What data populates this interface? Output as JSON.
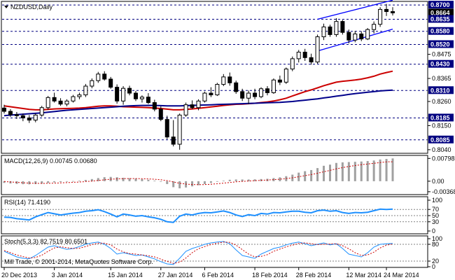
{
  "chart_data": {
    "type": "candlestick",
    "symbol_title": "NZDUSD,Daily",
    "symbol_menu_icon": "triangle-down-icon",
    "copyright": "Mill Trade, © 2001-2014, MetaQuotes Software Corp.",
    "dates": [
      "20 Dec 2013",
      "3 Jan 2014",
      "15 Jan 2014",
      "27 Jan 2014",
      "6 Feb 2014",
      "18 Feb 2014",
      "28 Feb 2014",
      "12 Mar 2014",
      "24 Mar 2014"
    ],
    "price_axis": {
      "range": [
        0.803,
        0.871
      ],
      "tick_labels": [
        "0.8475",
        "0.8365",
        "0.8260",
        "0.8150",
        "0.8040"
      ],
      "level_labels": [
        "0.8700",
        "0.8664",
        "0.8635",
        "0.8580",
        "0.8520",
        "0.8430",
        "0.8310",
        "0.8185",
        "0.8085"
      ],
      "levels": [
        0.87,
        0.8635,
        0.858,
        0.852,
        0.843,
        0.831,
        0.8185,
        0.8085
      ],
      "current_price": 0.8664
    },
    "channel": {
      "upper": [
        [
          50,
          0.8635
        ],
        [
          62,
          0.8722
        ]
      ],
      "lower": [
        [
          50,
          0.849
        ],
        [
          62,
          0.859
        ]
      ]
    },
    "ohlc": [
      [
        0.823,
        0.8245,
        0.8205,
        0.8215
      ],
      [
        0.8215,
        0.8225,
        0.819,
        0.82
      ],
      [
        0.82,
        0.8212,
        0.818,
        0.8195
      ],
      [
        0.8195,
        0.8205,
        0.817,
        0.8185
      ],
      [
        0.8185,
        0.8198,
        0.8162,
        0.8175
      ],
      [
        0.8175,
        0.8205,
        0.8165,
        0.8198
      ],
      [
        0.8198,
        0.824,
        0.819,
        0.8232
      ],
      [
        0.8232,
        0.8285,
        0.8222,
        0.8278
      ],
      [
        0.8278,
        0.83,
        0.8255,
        0.8262
      ],
      [
        0.8262,
        0.8275,
        0.824,
        0.8248
      ],
      [
        0.8248,
        0.827,
        0.8238,
        0.8262
      ],
      [
        0.8262,
        0.829,
        0.8255,
        0.8282
      ],
      [
        0.8282,
        0.83,
        0.827,
        0.829
      ],
      [
        0.829,
        0.834,
        0.828,
        0.833
      ],
      [
        0.833,
        0.8365,
        0.832,
        0.8355
      ],
      [
        0.8355,
        0.8395,
        0.8345,
        0.8385
      ],
      [
        0.8385,
        0.8398,
        0.8355,
        0.8362
      ],
      [
        0.8362,
        0.8372,
        0.8318,
        0.8325
      ],
      [
        0.8325,
        0.8338,
        0.825,
        0.8262
      ],
      [
        0.8262,
        0.833,
        0.8245,
        0.832
      ],
      [
        0.832,
        0.8332,
        0.8288,
        0.8298
      ],
      [
        0.8298,
        0.8308,
        0.8262,
        0.8272
      ],
      [
        0.8272,
        0.8288,
        0.8255,
        0.828
      ],
      [
        0.828,
        0.8298,
        0.8248,
        0.8255
      ],
      [
        0.8255,
        0.8268,
        0.8215,
        0.8225
      ],
      [
        0.8225,
        0.8238,
        0.817,
        0.8178
      ],
      [
        0.8178,
        0.8195,
        0.8088,
        0.8098
      ],
      [
        0.8098,
        0.8175,
        0.8055,
        0.8065
      ],
      [
        0.8065,
        0.8205,
        0.804,
        0.8198
      ],
      [
        0.8198,
        0.8255,
        0.819,
        0.8245
      ],
      [
        0.8245,
        0.8265,
        0.8225,
        0.8232
      ],
      [
        0.8232,
        0.827,
        0.822,
        0.8262
      ],
      [
        0.8262,
        0.8305,
        0.8255,
        0.8298
      ],
      [
        0.8298,
        0.8325,
        0.828,
        0.829
      ],
      [
        0.829,
        0.8345,
        0.8285,
        0.8338
      ],
      [
        0.8338,
        0.8385,
        0.833,
        0.8372
      ],
      [
        0.8372,
        0.8392,
        0.8332,
        0.8345
      ],
      [
        0.8345,
        0.8355,
        0.8295,
        0.8305
      ],
      [
        0.8305,
        0.8318,
        0.8262,
        0.8275
      ],
      [
        0.8275,
        0.831,
        0.8248,
        0.8298
      ],
      [
        0.8298,
        0.8318,
        0.827,
        0.8282
      ],
      [
        0.8282,
        0.8325,
        0.8275,
        0.8318
      ],
      [
        0.8318,
        0.833,
        0.8288,
        0.83
      ],
      [
        0.83,
        0.8365,
        0.8295,
        0.8358
      ],
      [
        0.8358,
        0.8378,
        0.8335,
        0.8348
      ],
      [
        0.8348,
        0.8415,
        0.834,
        0.8408
      ],
      [
        0.8408,
        0.8465,
        0.8398,
        0.8455
      ],
      [
        0.8455,
        0.8495,
        0.8438,
        0.8485
      ],
      [
        0.8485,
        0.85,
        0.8445,
        0.846
      ],
      [
        0.846,
        0.8478,
        0.8428,
        0.844
      ],
      [
        0.844,
        0.8565,
        0.8432,
        0.8555
      ],
      [
        0.8555,
        0.8615,
        0.854,
        0.86
      ],
      [
        0.86,
        0.861,
        0.8555,
        0.8565
      ],
      [
        0.8565,
        0.864,
        0.8555,
        0.8625
      ],
      [
        0.8625,
        0.8632,
        0.8565,
        0.8575
      ],
      [
        0.8575,
        0.8588,
        0.8525,
        0.854
      ],
      [
        0.854,
        0.8582,
        0.853,
        0.8568
      ],
      [
        0.8568,
        0.858,
        0.8535,
        0.8545
      ],
      [
        0.8545,
        0.8595,
        0.854,
        0.8588
      ],
      [
        0.8588,
        0.8625,
        0.857,
        0.8612
      ],
      [
        0.8612,
        0.869,
        0.86,
        0.868
      ],
      [
        0.868,
        0.8705,
        0.865,
        0.867
      ],
      [
        0.867,
        0.869,
        0.8652,
        0.8664
      ]
    ],
    "ma_red": [
      0.824,
      0.8236,
      0.8232,
      0.8228,
      0.8224,
      0.8222,
      0.8222,
      0.8224,
      0.8226,
      0.8227,
      0.8228,
      0.8229,
      0.823,
      0.8232,
      0.8235,
      0.8238,
      0.824,
      0.824,
      0.8238,
      0.8236,
      0.8235,
      0.8234,
      0.8233,
      0.8232,
      0.823,
      0.8228,
      0.8225,
      0.8222,
      0.8222,
      0.8224,
      0.8226,
      0.8229,
      0.8232,
      0.8235,
      0.8238,
      0.8242,
      0.8245,
      0.8247,
      0.8248,
      0.825,
      0.8252,
      0.8255,
      0.8258,
      0.8262,
      0.8268,
      0.8275,
      0.8285,
      0.8295,
      0.8305,
      0.8313,
      0.8322,
      0.8332,
      0.834,
      0.8348,
      0.8352,
      0.8355,
      0.8358,
      0.8362,
      0.8368,
      0.8375,
      0.8385,
      0.8392,
      0.8398
    ],
    "ma_blue": [
      0.8195,
      0.8198,
      0.82,
      0.8202,
      0.8204,
      0.8206,
      0.8208,
      0.8211,
      0.8214,
      0.8217,
      0.822,
      0.8222,
      0.8224,
      0.8226,
      0.8228,
      0.823,
      0.8232,
      0.8234,
      0.8236,
      0.8238,
      0.824,
      0.8241,
      0.8242,
      0.8242,
      0.8242,
      0.8241,
      0.824,
      0.824,
      0.824,
      0.8241,
      0.8242,
      0.8243,
      0.8244,
      0.8245,
      0.8246,
      0.8247,
      0.8248,
      0.8249,
      0.825,
      0.8251,
      0.8252,
      0.8253,
      0.8254,
      0.8255,
      0.8256,
      0.8258,
      0.826,
      0.8263,
      0.8266,
      0.8269,
      0.8272,
      0.8276,
      0.828,
      0.8284,
      0.8288,
      0.8292,
      0.8296,
      0.8299,
      0.8302,
      0.8305,
      0.8308,
      0.831,
      0.8312
    ],
    "macd": {
      "title": "MACD(12,26,9) 0.00745 0.00680",
      "tick_labels": [
        "0.00798",
        "0.00",
        "-0.00368"
      ],
      "range": [
        -0.0042,
        0.0083
      ],
      "hist": [
        -0.0006,
        -0.0008,
        -0.00095,
        -0.00105,
        -0.0011,
        -0.001,
        -0.00085,
        -0.0006,
        -0.0004,
        -0.0003,
        -0.00015,
        5e-05,
        0.0002,
        0.00045,
        0.00075,
        0.0011,
        0.0014,
        0.0015,
        0.0014,
        0.0012,
        0.00105,
        0.0009,
        0.0007,
        0.0005,
        0.0002,
        -0.0002,
        -0.001,
        -0.0021,
        -0.0025,
        -0.0022,
        -0.0018,
        -0.0014,
        -0.001,
        -0.0006,
        -0.0002,
        0.0002,
        0.0005,
        0.0006,
        0.0006,
        0.0006,
        0.00065,
        0.00075,
        0.00085,
        0.0011,
        0.00135,
        0.00175,
        0.0023,
        0.003,
        0.0035,
        0.0039,
        0.0046,
        0.0054,
        0.0058,
        0.0064,
        0.0066,
        0.0067,
        0.0068,
        0.0069,
        0.00705,
        0.00725,
        0.0076,
        0.0078,
        0.00798
      ],
      "signal": [
        -0.0001,
        -0.00025,
        -0.0004,
        -0.00055,
        -0.00068,
        -0.00075,
        -0.00077,
        -0.00074,
        -0.00067,
        -0.0006,
        -0.00051,
        -0.0004,
        -0.00028,
        -0.00013,
        5e-05,
        0.00026,
        0.00049,
        0.00069,
        0.00083,
        0.0009,
        0.00093,
        0.00093,
        0.00088,
        0.0008,
        0.00068,
        0.0005,
        0.0002,
        -0.00026,
        -0.00071,
        -0.00101,
        -0.00117,
        -0.00122,
        -0.00118,
        -0.00106,
        -0.00089,
        -0.00067,
        -0.00044,
        -0.00023,
        -6e-05,
        7e-05,
        0.00019,
        0.0003,
        0.00041,
        0.00055,
        0.00071,
        0.00092,
        0.00119,
        0.00155,
        0.00194,
        0.00233,
        0.00278,
        0.0033,
        0.0038,
        0.00432,
        0.00478,
        0.00516,
        0.00549,
        0.00577,
        0.00603,
        0.00627,
        0.00654,
        0.00679,
        0.0068
      ]
    },
    "rsi": {
      "title": "RSI(14) 71.4190",
      "tick_labels": [
        "100",
        "70",
        "50",
        "30",
        "0"
      ],
      "levels": [
        70,
        50,
        30
      ],
      "range": [
        0,
        100
      ],
      "values": [
        45,
        44,
        40,
        38,
        36,
        46,
        53,
        60,
        56,
        52,
        55,
        58,
        60,
        64,
        66,
        69,
        63,
        55,
        46,
        55,
        52,
        48,
        50,
        46,
        43,
        38,
        30,
        28,
        48,
        55,
        52,
        57,
        60,
        59,
        62,
        65,
        60,
        52,
        47,
        53,
        50,
        57,
        55,
        60,
        59,
        62,
        64,
        64,
        61,
        59,
        66,
        68,
        64,
        66,
        60,
        57,
        60,
        59,
        61,
        66,
        71,
        70,
        71
      ]
    },
    "stoch": {
      "title": "Stoch(5,3,3) 82.7519 80.6501",
      "tick_labels": [
        "100",
        "80",
        "20",
        "0"
      ],
      "levels": [
        80,
        20
      ],
      "range": [
        0,
        100
      ],
      "k": [
        55,
        45,
        35,
        30,
        28,
        40,
        55,
        70,
        75,
        68,
        62,
        65,
        72,
        80,
        85,
        88,
        80,
        65,
        45,
        50,
        45,
        40,
        42,
        35,
        28,
        18,
        10,
        8,
        30,
        55,
        65,
        72,
        80,
        85,
        88,
        90,
        82,
        60,
        40,
        35,
        30,
        45,
        55,
        65,
        70,
        78,
        84,
        88,
        82,
        75,
        80,
        85,
        78,
        82,
        65,
        45,
        40,
        35,
        50,
        70,
        80,
        82,
        83
      ],
      "d": [
        58,
        50,
        42,
        36,
        31,
        33,
        41,
        55,
        67,
        71,
        68,
        65,
        66,
        72,
        79,
        84,
        84,
        78,
        63,
        53,
        47,
        45,
        42,
        39,
        35,
        27,
        19,
        12,
        16,
        31,
        50,
        64,
        72,
        79,
        84,
        88,
        87,
        77,
        61,
        45,
        35,
        37,
        43,
        55,
        63,
        71,
        77,
        83,
        85,
        82,
        79,
        80,
        81,
        82,
        75,
        64,
        50,
        40,
        42,
        52,
        67,
        77,
        81
      ]
    }
  }
}
